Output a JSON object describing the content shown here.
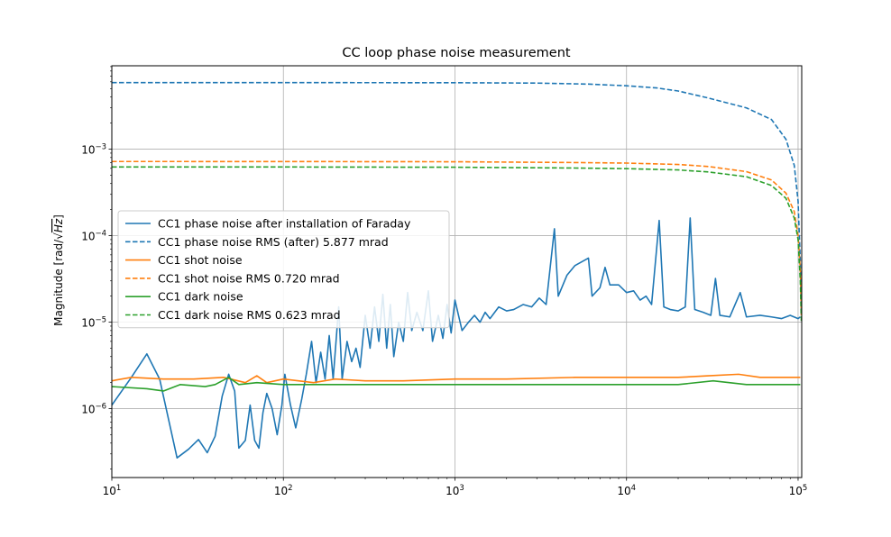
{
  "chart_data": {
    "type": "line",
    "title": "CC loop phase noise measurement",
    "xlabel": "",
    "ylabel": "Magnitude [rad/√Hz]",
    "x_scale": "log",
    "y_scale": "log",
    "xlim": [
      10,
      105000
    ],
    "ylim": [
      1.6e-07,
      0.0092
    ],
    "grid": true,
    "legend_position": "center-left",
    "x_ticks": [
      {
        "value": 10,
        "base": "10",
        "exp": "1"
      },
      {
        "value": 100,
        "base": "10",
        "exp": "2"
      },
      {
        "value": 1000,
        "base": "10",
        "exp": "3"
      },
      {
        "value": 10000,
        "base": "10",
        "exp": "4"
      },
      {
        "value": 100000,
        "base": "10",
        "exp": "5"
      }
    ],
    "y_ticks": [
      {
        "value": 1e-06,
        "base": "10",
        "exp": "−6"
      },
      {
        "value": 1e-05,
        "base": "10",
        "exp": "−5"
      },
      {
        "value": 0.0001,
        "base": "10",
        "exp": "−4"
      },
      {
        "value": 0.001,
        "base": "10",
        "exp": "−3"
      }
    ],
    "series": [
      {
        "name": "CC1 phase noise after installation of Faraday",
        "color": "#1f77b4",
        "dash": "solid",
        "points": [
          [
            10,
            1.1e-06
          ],
          [
            13,
            2.3e-06
          ],
          [
            16,
            4.3e-06
          ],
          [
            19,
            2.2e-06
          ],
          [
            24,
            2.7e-07
          ],
          [
            28,
            3.4e-07
          ],
          [
            32,
            4.4e-07
          ],
          [
            36,
            3.1e-07
          ],
          [
            40,
            4.8e-07
          ],
          [
            44,
            1.4e-06
          ],
          [
            48,
            2.5e-06
          ],
          [
            52,
            1.6e-06
          ],
          [
            55,
            3.5e-07
          ],
          [
            60,
            4.3e-07
          ],
          [
            64,
            1.1e-06
          ],
          [
            68,
            4.3e-07
          ],
          [
            72,
            3.5e-07
          ],
          [
            76,
            9e-07
          ],
          [
            80,
            1.5e-06
          ],
          [
            86,
            1e-06
          ],
          [
            92,
            5e-07
          ],
          [
            98,
            1.1e-06
          ],
          [
            102,
            2.5e-06
          ],
          [
            110,
            1.1e-06
          ],
          [
            118,
            6e-07
          ],
          [
            128,
            1.3e-06
          ],
          [
            136,
            2.5e-06
          ],
          [
            146,
            6e-06
          ],
          [
            155,
            2e-06
          ],
          [
            165,
            4.5e-06
          ],
          [
            175,
            2.2e-06
          ],
          [
            185,
            7e-06
          ],
          [
            195,
            2.2e-06
          ],
          [
            210,
            1.5e-05
          ],
          [
            220,
            2.2e-06
          ],
          [
            235,
            6e-06
          ],
          [
            250,
            3.5e-06
          ],
          [
            265,
            5e-06
          ],
          [
            280,
            3e-06
          ],
          [
            300,
            1.2e-05
          ],
          [
            320,
            5e-06
          ],
          [
            340,
            1.5e-05
          ],
          [
            360,
            6e-06
          ],
          [
            380,
            2.1e-05
          ],
          [
            400,
            5e-06
          ],
          [
            420,
            1.6e-05
          ],
          [
            440,
            4e-06
          ],
          [
            470,
            1e-05
          ],
          [
            500,
            6e-06
          ],
          [
            530,
            2.2e-05
          ],
          [
            560,
            8e-06
          ],
          [
            600,
            1.3e-05
          ],
          [
            650,
            8e-06
          ],
          [
            700,
            2.3e-05
          ],
          [
            740,
            6e-06
          ],
          [
            800,
            1.2e-05
          ],
          [
            850,
            6.5e-06
          ],
          [
            900,
            1.6e-05
          ],
          [
            950,
            7.5e-06
          ],
          [
            1000,
            1.8e-05
          ],
          [
            1100,
            8e-06
          ],
          [
            1200,
            1e-05
          ],
          [
            1300,
            1.2e-05
          ],
          [
            1400,
            1e-05
          ],
          [
            1500,
            1.3e-05
          ],
          [
            1600,
            1.1e-05
          ],
          [
            1800,
            1.5e-05
          ],
          [
            2000,
            1.35e-05
          ],
          [
            2200,
            1.4e-05
          ],
          [
            2500,
            1.6e-05
          ],
          [
            2800,
            1.5e-05
          ],
          [
            3100,
            1.9e-05
          ],
          [
            3400,
            1.6e-05
          ],
          [
            3800,
            0.00012
          ],
          [
            4000,
            2e-05
          ],
          [
            4500,
            3.5e-05
          ],
          [
            5000,
            4.5e-05
          ],
          [
            5500,
            5e-05
          ],
          [
            6000,
            5.5e-05
          ],
          [
            6300,
            2e-05
          ],
          [
            7000,
            2.5e-05
          ],
          [
            7500,
            4.3e-05
          ],
          [
            8000,
            2.7e-05
          ],
          [
            9000,
            2.7e-05
          ],
          [
            10000,
            2.2e-05
          ],
          [
            11000,
            2.3e-05
          ],
          [
            12000,
            1.8e-05
          ],
          [
            13000,
            2e-05
          ],
          [
            14000,
            1.6e-05
          ],
          [
            15500,
            0.00015
          ],
          [
            16500,
            1.5e-05
          ],
          [
            18000,
            1.4e-05
          ],
          [
            20000,
            1.35e-05
          ],
          [
            22000,
            1.5e-05
          ],
          [
            23500,
            0.00016
          ],
          [
            25000,
            1.4e-05
          ],
          [
            28000,
            1.3e-05
          ],
          [
            31000,
            1.2e-05
          ],
          [
            33000,
            3.2e-05
          ],
          [
            35000,
            1.2e-05
          ],
          [
            40000,
            1.15e-05
          ],
          [
            46000,
            2.2e-05
          ],
          [
            50000,
            1.15e-05
          ],
          [
            60000,
            1.2e-05
          ],
          [
            70000,
            1.15e-05
          ],
          [
            80000,
            1.1e-05
          ],
          [
            90000,
            1.2e-05
          ],
          [
            100000,
            1.1e-05
          ],
          [
            103000,
            1.15e-05
          ]
        ]
      },
      {
        "name": "CC1 phase noise RMS (after) 5.877 mrad",
        "color": "#1f77b4",
        "dash": "dashed",
        "points": [
          [
            10,
            0.005877
          ],
          [
            100,
            0.005876
          ],
          [
            1000,
            0.00586
          ],
          [
            3000,
            0.0058
          ],
          [
            6000,
            0.00565
          ],
          [
            10000,
            0.0054
          ],
          [
            15000,
            0.0051
          ],
          [
            20000,
            0.0047
          ],
          [
            30000,
            0.0039
          ],
          [
            50000,
            0.003
          ],
          [
            70000,
            0.0022
          ],
          [
            85000,
            0.0013
          ],
          [
            95000,
            0.00065
          ],
          [
            100000,
            0.00025
          ],
          [
            103000,
            5e-05
          ],
          [
            104500,
            1.2e-05
          ]
        ]
      },
      {
        "name": "CC1 shot noise",
        "color": "#ff7f0e",
        "dash": "solid",
        "points": [
          [
            10,
            2.1e-06
          ],
          [
            13,
            2.3e-06
          ],
          [
            20,
            2.2e-06
          ],
          [
            30,
            2.2e-06
          ],
          [
            45,
            2.3e-06
          ],
          [
            60,
            2e-06
          ],
          [
            70,
            2.4e-06
          ],
          [
            80,
            2e-06
          ],
          [
            100,
            2.2e-06
          ],
          [
            150,
            2e-06
          ],
          [
            200,
            2.2e-06
          ],
          [
            300,
            2.1e-06
          ],
          [
            500,
            2.1e-06
          ],
          [
            1000,
            2.2e-06
          ],
          [
            2000,
            2.2e-06
          ],
          [
            5000,
            2.3e-06
          ],
          [
            10000,
            2.3e-06
          ],
          [
            20000,
            2.3e-06
          ],
          [
            30000,
            2.4e-06
          ],
          [
            45000,
            2.5e-06
          ],
          [
            60000,
            2.3e-06
          ],
          [
            80000,
            2.3e-06
          ],
          [
            103000,
            2.3e-06
          ]
        ]
      },
      {
        "name": "CC1 shot noise RMS 0.720 mrad",
        "color": "#ff7f0e",
        "dash": "dashed",
        "points": [
          [
            10,
            0.00072
          ],
          [
            100,
            0.000719
          ],
          [
            1000,
            0.000715
          ],
          [
            5000,
            0.0007
          ],
          [
            10000,
            0.00069
          ],
          [
            20000,
            0.000665
          ],
          [
            30000,
            0.00063
          ],
          [
            50000,
            0.00055
          ],
          [
            70000,
            0.00044
          ],
          [
            85000,
            0.00031
          ],
          [
            95000,
            0.00019
          ],
          [
            100000,
            0.0001
          ],
          [
            103000,
            4e-05
          ],
          [
            104500,
            1.2e-05
          ]
        ]
      },
      {
        "name": "CC1 dark noise",
        "color": "#2ca02c",
        "dash": "solid",
        "points": [
          [
            10,
            1.8e-06
          ],
          [
            16,
            1.7e-06
          ],
          [
            20,
            1.6e-06
          ],
          [
            25,
            1.9e-06
          ],
          [
            35,
            1.8e-06
          ],
          [
            40,
            1.9e-06
          ],
          [
            48,
            2.3e-06
          ],
          [
            55,
            1.9e-06
          ],
          [
            70,
            2e-06
          ],
          [
            100,
            1.9e-06
          ],
          [
            150,
            1.9e-06
          ],
          [
            200,
            1.9e-06
          ],
          [
            300,
            1.9e-06
          ],
          [
            500,
            1.9e-06
          ],
          [
            1000,
            1.9e-06
          ],
          [
            2000,
            1.9e-06
          ],
          [
            5000,
            1.9e-06
          ],
          [
            10000,
            1.9e-06
          ],
          [
            20000,
            1.9e-06
          ],
          [
            32000,
            2.1e-06
          ],
          [
            50000,
            1.9e-06
          ],
          [
            80000,
            1.9e-06
          ],
          [
            103000,
            1.9e-06
          ]
        ]
      },
      {
        "name": "CC1 dark noise RMS 0.623 mrad",
        "color": "#2ca02c",
        "dash": "dashed",
        "points": [
          [
            10,
            0.000623
          ],
          [
            100,
            0.000622
          ],
          [
            1000,
            0.000618
          ],
          [
            5000,
            0.000605
          ],
          [
            10000,
            0.000595
          ],
          [
            20000,
            0.000575
          ],
          [
            30000,
            0.000545
          ],
          [
            50000,
            0.00048
          ],
          [
            70000,
            0.00038
          ],
          [
            85000,
            0.00027
          ],
          [
            95000,
            0.00016
          ],
          [
            100000,
            9e-05
          ],
          [
            103000,
            3e-05
          ],
          [
            104500,
            1e-05
          ]
        ]
      }
    ]
  }
}
